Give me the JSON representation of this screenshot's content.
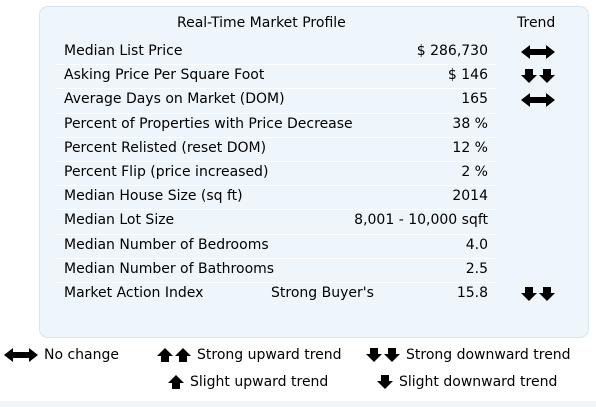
{
  "header": {
    "title": "Real-Time Market Profile",
    "trend_heading": "Trend"
  },
  "rows": [
    {
      "label": "Median List Price",
      "value": "$ 286,730",
      "trend": "no-change-icon"
    },
    {
      "label": "Asking Price Per Square Foot",
      "value": "$ 146",
      "trend": "strong-downward-trend-icon"
    },
    {
      "label": "Average Days on Market (DOM)",
      "value": "165",
      "trend": "no-change-icon"
    },
    {
      "label": "Percent of Properties with Price Decrease",
      "value": "38 %",
      "trend": ""
    },
    {
      "label": "Percent Relisted (reset DOM)",
      "value": "12 %",
      "trend": ""
    },
    {
      "label": "Percent Flip (price increased)",
      "value": "2 %",
      "trend": ""
    },
    {
      "label": "Median House Size (sq ft)",
      "value": "2014",
      "trend": ""
    },
    {
      "label": "Median Lot Size",
      "value": "8,001 - 10,000 sqft",
      "trend": ""
    },
    {
      "label": "Median Number of Bedrooms",
      "value": "4.0",
      "trend": ""
    },
    {
      "label": "Median Number of Bathrooms",
      "value": "2.5",
      "trend": ""
    },
    {
      "label": "Market Action Index",
      "middle": "Strong Buyer's",
      "value": "15.8",
      "trend": "strong-downward-trend-icon"
    }
  ],
  "legend": {
    "no_change": "No change",
    "strong_up": "Strong upward trend",
    "strong_down": "Strong downward trend",
    "slight_up": "Slight upward trend",
    "slight_down": "Slight downward trend"
  },
  "colors": {
    "panel_background": "#eef6fb",
    "panel_border": "#d3e6f1",
    "icon": "#000000"
  }
}
